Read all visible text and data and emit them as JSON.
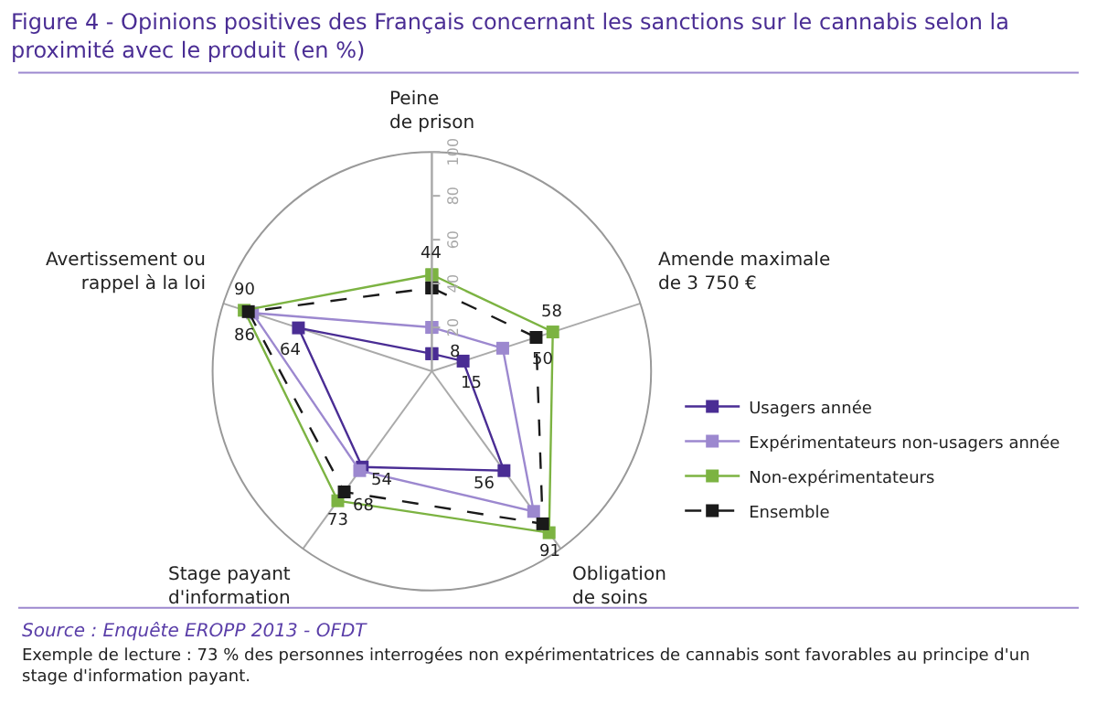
{
  "chart_data": {
    "type": "radar",
    "title": "Figure 4 - Opinions positives des Français concernant les sanctions sur le cannabis selon la proximité avec le produit (en %)",
    "categories": [
      "Peine de prison",
      "Amende maximale de 3 750 €",
      "Obligation de soins",
      "Stage payant d'information",
      "Avertissement ou rappel à la loi"
    ],
    "series": [
      {
        "name": "Usagers année",
        "color": "#4a2d94",
        "values": [
          8,
          15,
          56,
          54,
          64
        ],
        "value_labels": [
          "8",
          "15",
          "56",
          "54",
          "64"
        ]
      },
      {
        "name": "Expérimentateurs non-usagers année",
        "color": "#9c88cf",
        "values": [
          20,
          34,
          79,
          56,
          86
        ],
        "value_labels": [
          null,
          null,
          null,
          null,
          "86"
        ]
      },
      {
        "name": "Non-expérimentateurs",
        "color": "#7cb342",
        "values": [
          44,
          58,
          91,
          73,
          90
        ],
        "value_labels": [
          "44",
          "58",
          "91",
          "73",
          "90"
        ]
      },
      {
        "name": "Ensemble",
        "color": "#1a1a1a",
        "line_style": "dashed",
        "values": [
          38,
          50,
          86,
          68,
          88
        ],
        "value_labels": [
          null,
          "50",
          null,
          "68",
          null
        ]
      }
    ],
    "ylim": [
      0,
      100
    ],
    "yticks": [
      20,
      40,
      60,
      80,
      100
    ],
    "marker": "square",
    "line_style": "solid",
    "legend": "right",
    "grid": false,
    "annotations": [
      "Source : Enquête EROPP 2013 - OFDT",
      "Exemple de lecture : 73 % des personnes interrogées non expérimentatrices de cannabis sont favorables au principe d'un stage d'information payant."
    ]
  }
}
